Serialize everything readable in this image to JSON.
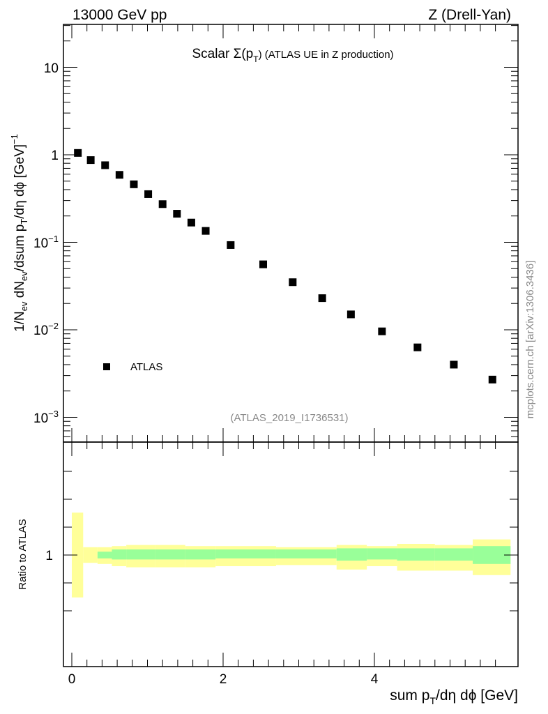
{
  "header": {
    "left": "13000 GeV pp",
    "right": "Z (Drell-Yan)"
  },
  "side_label": "mcplots.cern.ch [arXiv:1306.3436]",
  "chart_data": [
    {
      "type": "scatter",
      "title_main": "Scalar ",
      "title_sigma": "Σ(p",
      "title_sub": "T",
      "title_rest": ") (ATLAS UE in Z production)",
      "ylabel": "1/N_ev dN_ev/dsum p_T/dη dϕ [GeV]^-1",
      "yscale": "log",
      "ylim": [
        0.0005,
        30
      ],
      "xlim": [
        -0.15,
        5.85
      ],
      "y_tick_labels": [
        "10",
        "1",
        "10^-1",
        "10^-2",
        "10^-3"
      ],
      "watermark": "(ATLAS_2019_I1736531)",
      "legend": {
        "label": "ATLAS",
        "placement": "bottom-left",
        "marker_color": "#000000"
      },
      "series": [
        {
          "name": "ATLAS",
          "x": [
            0.08,
            0.25,
            0.44,
            0.63,
            0.82,
            1.01,
            1.2,
            1.39,
            1.58,
            1.77,
            2.1,
            2.53,
            2.92,
            3.31,
            3.69,
            4.1,
            4.57,
            5.05,
            5.56
          ],
          "values": [
            1.05,
            0.87,
            0.76,
            0.59,
            0.46,
            0.355,
            0.273,
            0.212,
            0.168,
            0.135,
            0.093,
            0.056,
            0.035,
            0.023,
            0.015,
            0.0096,
            0.0063,
            0.004,
            0.0027
          ]
        }
      ]
    },
    {
      "type": "area",
      "ylabel": "Ratio to ATLAS",
      "xlabel": "sum p_T/dη dϕ [GeV]",
      "xlim": [
        -0.15,
        5.85
      ],
      "ylim": [
        0.4,
        2.0
      ],
      "x_tick_labels": [
        "0",
        "2",
        "4"
      ],
      "y_tick_labels": [
        "1"
      ],
      "band_colors": {
        "inner": "#99ff99",
        "outer": "#ffff99"
      },
      "bins": [
        {
          "x0": 0.0,
          "x1": 0.15,
          "inner": [
            1.0,
            1.0
          ],
          "outer": [
            0.62,
            1.38
          ]
        },
        {
          "x0": 0.15,
          "x1": 0.34,
          "inner": [
            1.0,
            1.0
          ],
          "outer": [
            0.93,
            1.07
          ]
        },
        {
          "x0": 0.34,
          "x1": 0.53,
          "inner": [
            0.97,
            1.03
          ],
          "outer": [
            0.92,
            1.07
          ]
        },
        {
          "x0": 0.53,
          "x1": 0.72,
          "inner": [
            0.96,
            1.05
          ],
          "outer": [
            0.9,
            1.08
          ]
        },
        {
          "x0": 0.72,
          "x1": 1.1,
          "inner": [
            0.96,
            1.05
          ],
          "outer": [
            0.89,
            1.09
          ]
        },
        {
          "x0": 1.1,
          "x1": 1.5,
          "inner": [
            0.96,
            1.05
          ],
          "outer": [
            0.89,
            1.09
          ]
        },
        {
          "x0": 1.5,
          "x1": 1.9,
          "inner": [
            0.96,
            1.05
          ],
          "outer": [
            0.89,
            1.08
          ]
        },
        {
          "x0": 1.9,
          "x1": 2.7,
          "inner": [
            0.97,
            1.05
          ],
          "outer": [
            0.9,
            1.08
          ]
        },
        {
          "x0": 2.7,
          "x1": 3.5,
          "inner": [
            0.97,
            1.05
          ],
          "outer": [
            0.91,
            1.07
          ]
        },
        {
          "x0": 3.5,
          "x1": 3.9,
          "inner": [
            0.95,
            1.06
          ],
          "outer": [
            0.87,
            1.09
          ]
        },
        {
          "x0": 3.9,
          "x1": 4.3,
          "inner": [
            0.96,
            1.06
          ],
          "outer": [
            0.9,
            1.08
          ]
        },
        {
          "x0": 4.3,
          "x1": 4.8,
          "inner": [
            0.95,
            1.06
          ],
          "outer": [
            0.86,
            1.1
          ]
        },
        {
          "x0": 4.8,
          "x1": 5.3,
          "inner": [
            0.95,
            1.06
          ],
          "outer": [
            0.86,
            1.09
          ]
        },
        {
          "x0": 5.3,
          "x1": 5.8,
          "inner": [
            0.92,
            1.08
          ],
          "outer": [
            0.82,
            1.14
          ]
        }
      ]
    }
  ]
}
